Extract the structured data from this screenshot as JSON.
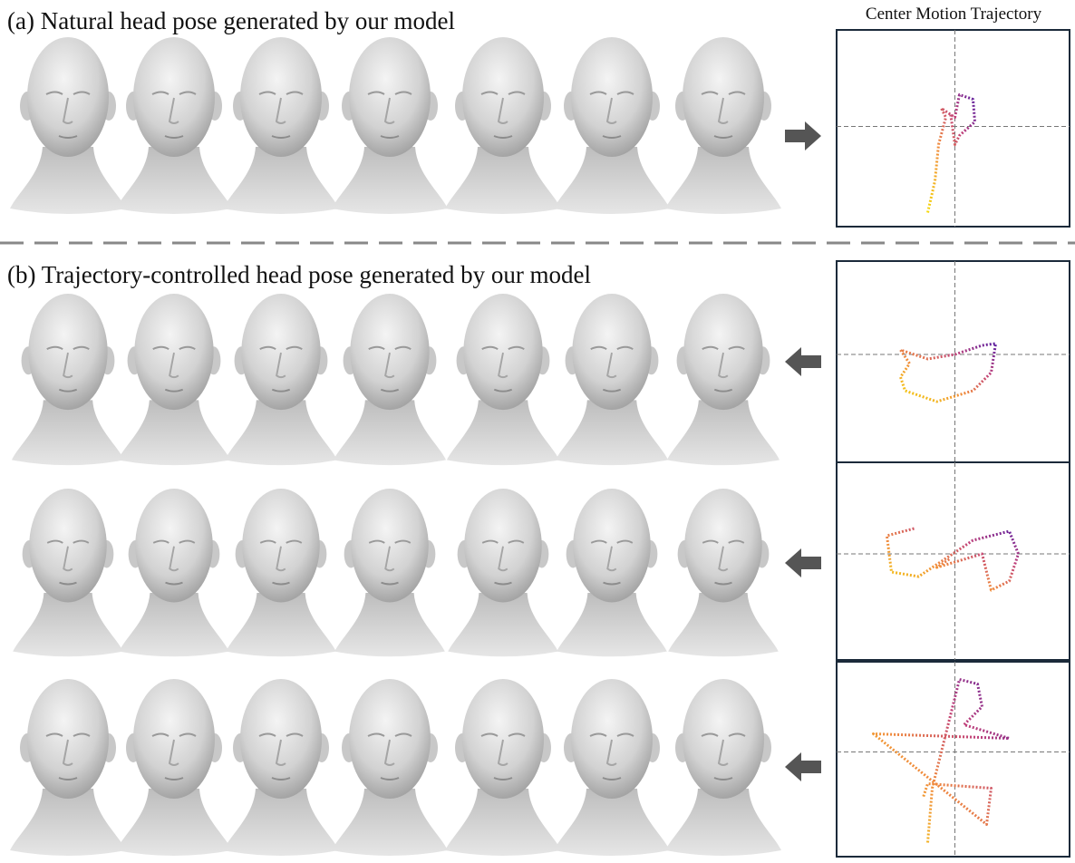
{
  "panel_a": {
    "caption": "(a) Natural head pose generated by our model",
    "trajectory_title": "Center Motion Trajectory"
  },
  "panel_b": {
    "caption": "(b) Trajectory-controlled head pose generated by our model"
  }
}
